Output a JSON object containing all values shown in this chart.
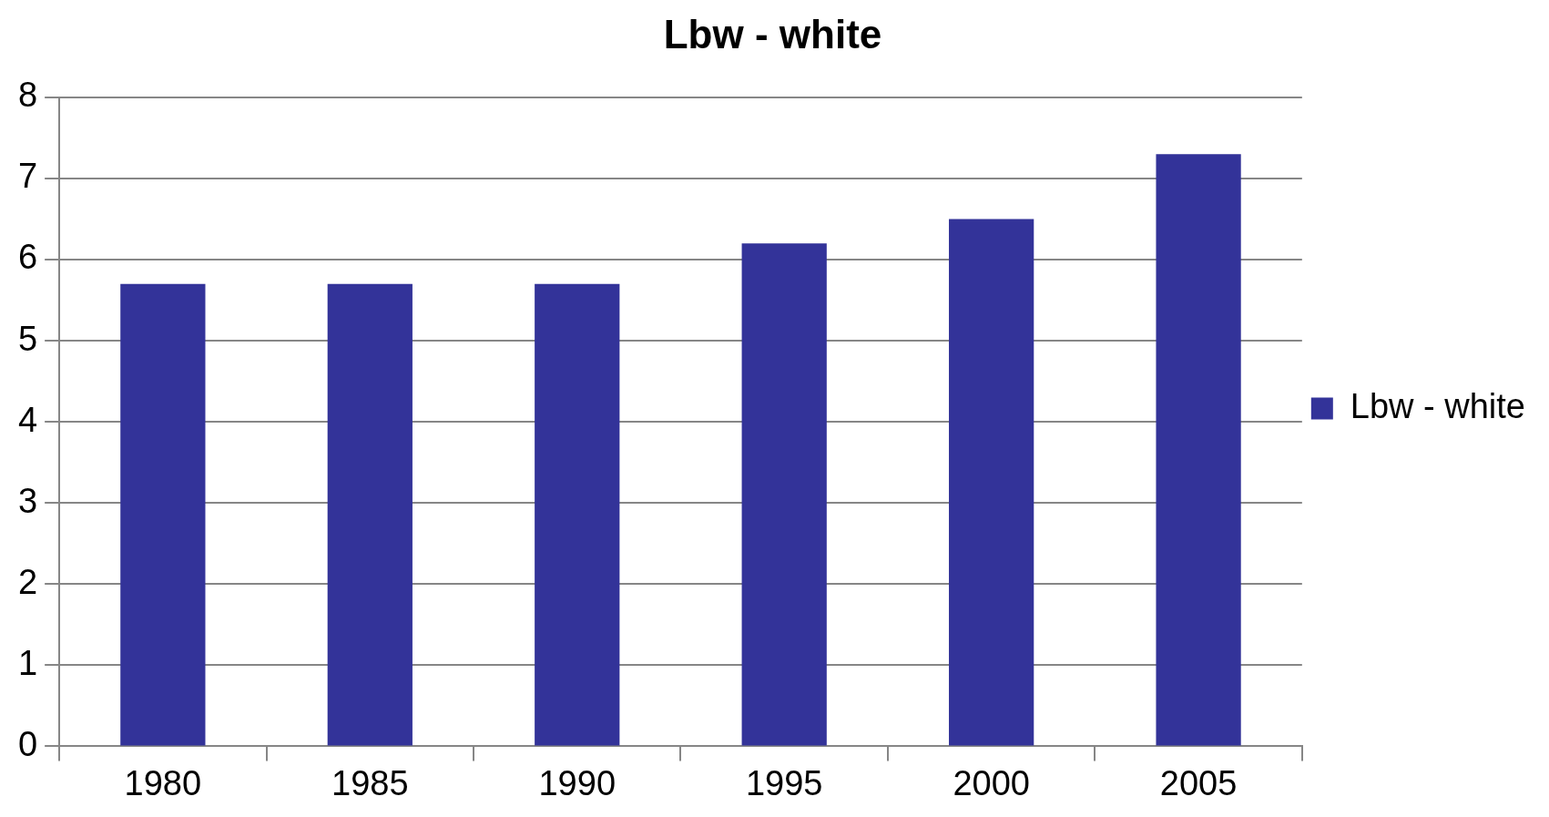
{
  "chart_data": {
    "type": "bar",
    "title": "Lbw - white",
    "categories": [
      "1980",
      "1985",
      "1990",
      "1995",
      "2000",
      "2005"
    ],
    "series": [
      {
        "name": "Lbw - white",
        "color": "#333399",
        "values": [
          5.7,
          5.7,
          5.7,
          6.2,
          6.5,
          7.3
        ]
      }
    ],
    "ylim": [
      0,
      8
    ],
    "yticks": [
      0,
      1,
      2,
      3,
      4,
      5,
      6,
      7,
      8
    ],
    "grid": "y",
    "legend": "right"
  }
}
